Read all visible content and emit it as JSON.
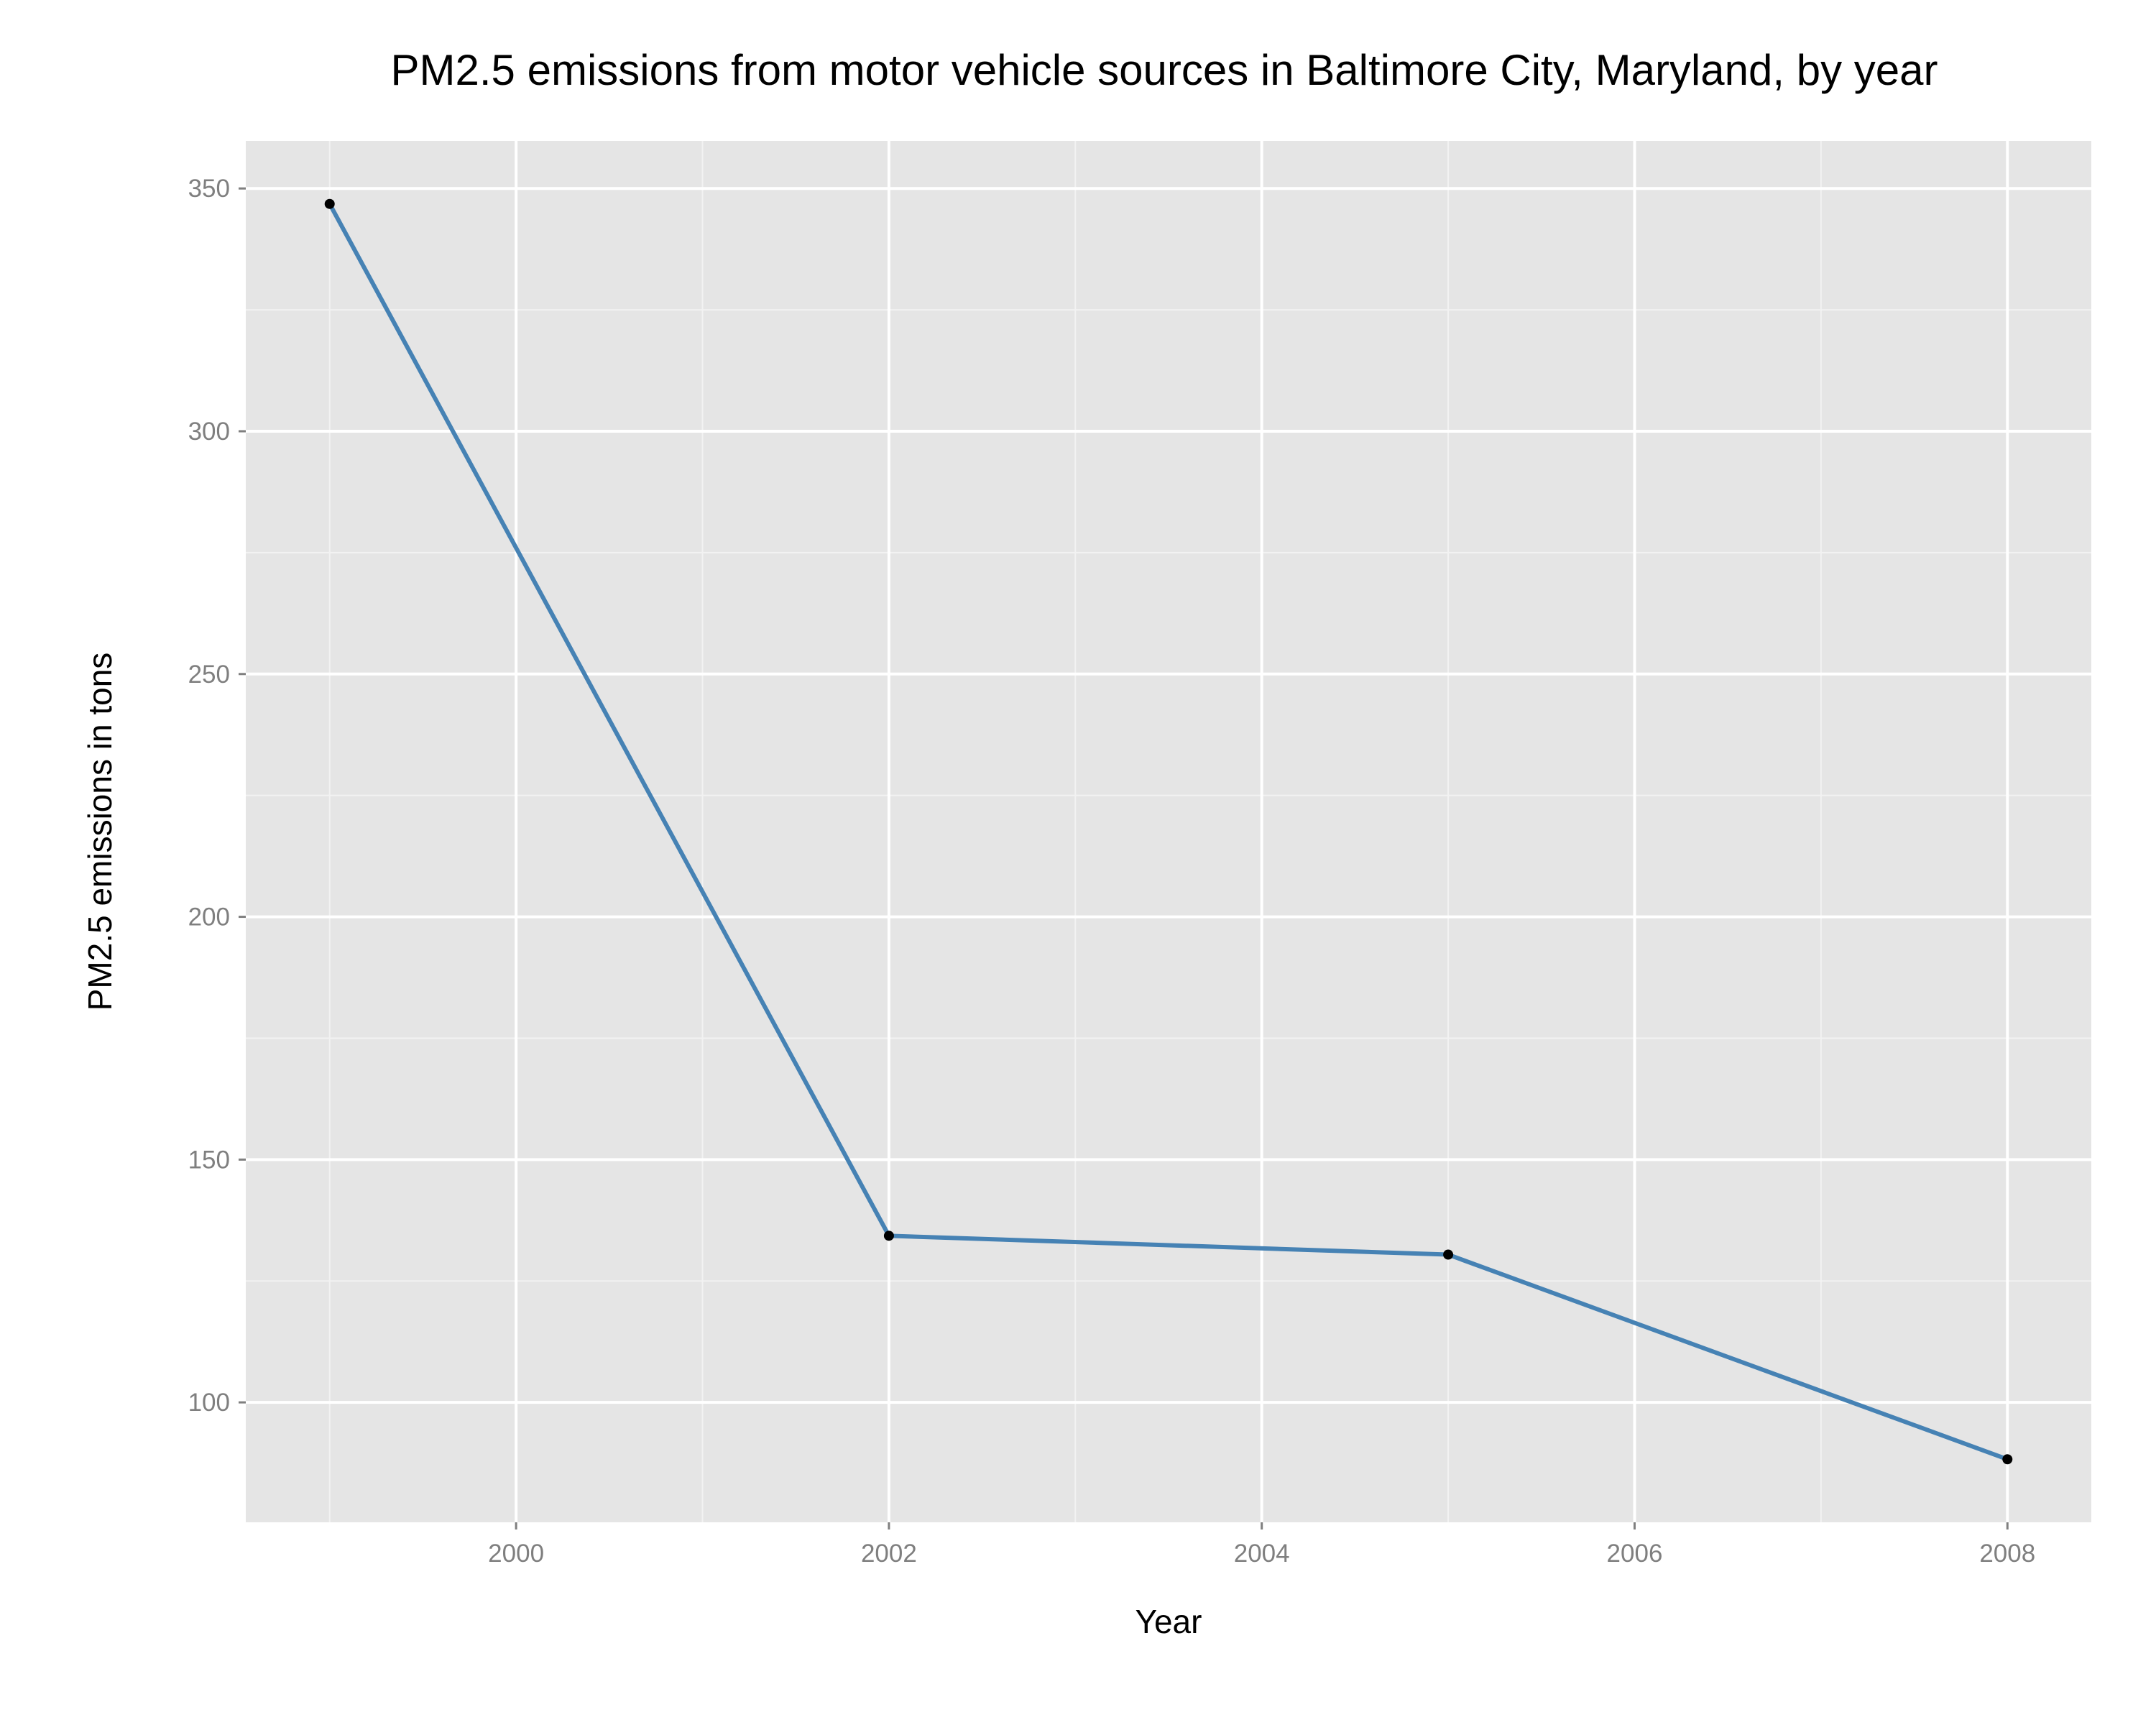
{
  "chart_data": {
    "type": "line",
    "title": "PM2.5 emissions from motor vehicle sources in Baltimore City, Maryland, by year",
    "xlabel": "Year",
    "ylabel": "PM2.5 emissions in tons",
    "x": [
      1999,
      2002,
      2005,
      2008
    ],
    "series": [
      {
        "values": [
          346.82,
          134.31,
          130.43,
          88.28
        ]
      }
    ],
    "xlim": [
      1998.55,
      2008.45
    ],
    "ylim": [
      75.3,
      359.8
    ],
    "x_ticks": [
      2000,
      2002,
      2004,
      2006,
      2008
    ],
    "x_tick_labels": [
      "2000",
      "2002",
      "2004",
      "2006",
      "2008"
    ],
    "y_ticks": [
      100,
      150,
      200,
      250,
      300,
      350
    ],
    "y_tick_labels": [
      "100",
      "150",
      "200",
      "250",
      "300",
      "350"
    ],
    "grid": true,
    "legend": "none",
    "colors": {
      "panel": "#e5e5e5",
      "grid_major": "#ffffff",
      "grid_minor": "#f2f2f2",
      "line": "#4682b4",
      "point": "#000000"
    }
  }
}
